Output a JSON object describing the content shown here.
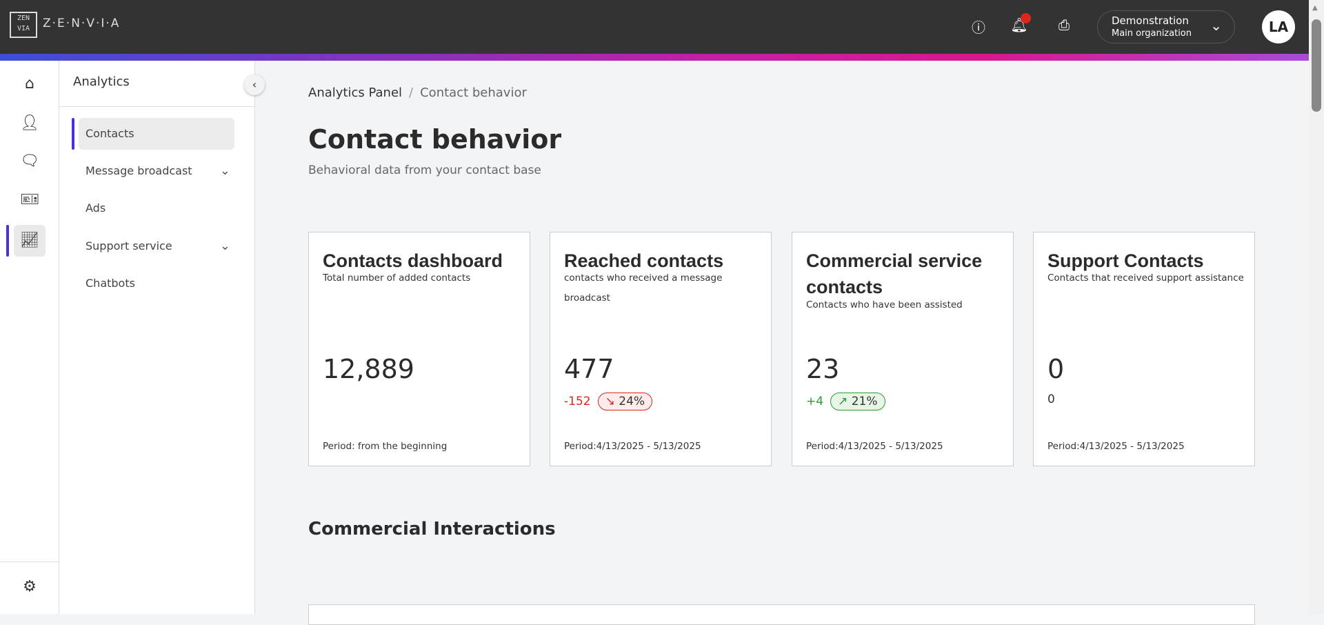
{
  "header": {
    "brand": "Z·E·N·V·I·A",
    "logo_text": "ZENVIA",
    "icons": [
      "help-icon",
      "bell-icon",
      "printer-icon"
    ],
    "org_name": "Demonstration",
    "org_sub": "Main organization",
    "avatar": "LA",
    "notification_color": "#e0261c"
  },
  "rail": {
    "items": [
      "home-icon",
      "person-icon",
      "chat-icon",
      "ticket-icon",
      "chart-icon"
    ],
    "active": "chart-icon",
    "bottom": "gear-icon"
  },
  "subnav": {
    "title": "Analytics",
    "items": [
      {
        "label": "Contacts",
        "active": true
      },
      {
        "label": "Message broadcast",
        "expandable": true
      },
      {
        "label": "Ads"
      },
      {
        "label": "Support service",
        "expandable": true
      },
      {
        "label": "Chatbots"
      }
    ]
  },
  "breadcrumb": {
    "parent": "Analytics Panel",
    "separator": "/",
    "current": "Contact behavior"
  },
  "page": {
    "title": "Contact behavior",
    "subtitle": "Behavioral data from your contact base",
    "section_title": "Commercial Interactions"
  },
  "cards": [
    {
      "title": "Contacts dashboard",
      "description": "Total number of added contacts",
      "value": "12,889",
      "period": "Period: from the beginning"
    },
    {
      "title": "Reached contacts",
      "description": "contacts who received a message broadcast",
      "value": "477",
      "delta": "-152",
      "badge": "24%",
      "trend": "down",
      "period": "Period:4/13/2025 - 5/13/2025"
    },
    {
      "title": "Commercial service contacts",
      "description": "Contacts who have been assisted",
      "value": "23",
      "delta": "+4",
      "badge": "21%",
      "trend": "up",
      "period": "Period:4/13/2025 - 5/13/2025"
    },
    {
      "title": "Support Contacts",
      "description": "Contacts that received support assistance",
      "value": "0",
      "delta": "0",
      "period": "Period:4/13/2025 - 5/13/2025"
    }
  ],
  "colors": {
    "accent": "#4a2fe0",
    "negative": "#e0261c",
    "positive": "#2a9a3a",
    "header": "#333333"
  }
}
